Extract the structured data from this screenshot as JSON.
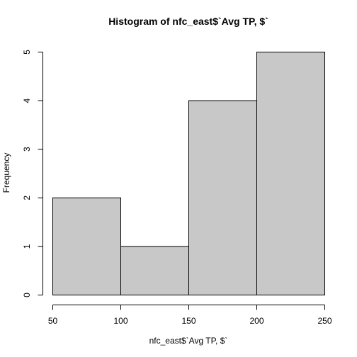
{
  "chart_data": {
    "type": "bar",
    "title": "Histogram of nfc_east$`Avg TP, $`",
    "xlabel": "nfc_east$`Avg TP, $`",
    "ylabel": "Frequency",
    "bins": [
      {
        "from": 50,
        "to": 100,
        "count": 2
      },
      {
        "from": 100,
        "to": 150,
        "count": 1
      },
      {
        "from": 150,
        "to": 200,
        "count": 4
      },
      {
        "from": 200,
        "to": 250,
        "count": 5
      }
    ],
    "xticks": [
      "50",
      "100",
      "150",
      "200",
      "250"
    ],
    "yticks": [
      "0",
      "1",
      "2",
      "3",
      "4",
      "5"
    ],
    "xlim": [
      50,
      250
    ],
    "ylim": [
      0,
      5
    ],
    "grid": false,
    "bar_color": "#c8c8c8",
    "bar_edge_color": "#000000"
  }
}
